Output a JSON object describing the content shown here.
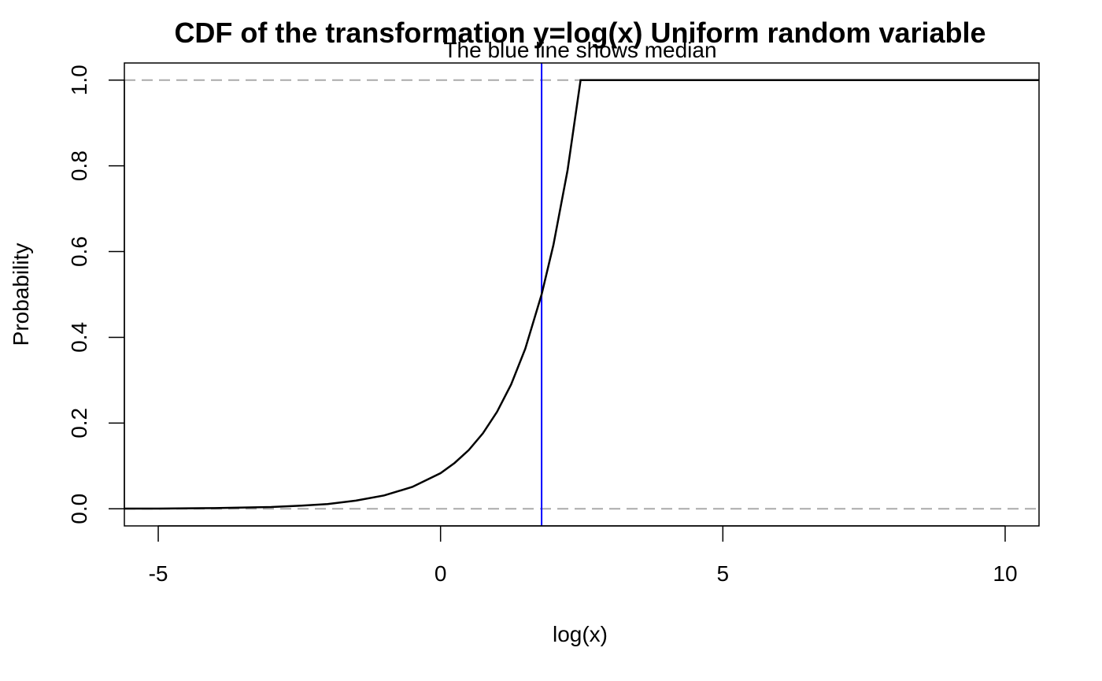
{
  "chart_data": {
    "type": "line",
    "title": "CDF of the transformation y=log(x) Uniform random variable",
    "subtitle": "The blue line shows median",
    "xlabel": "log(x)",
    "ylabel": "Probability",
    "xlim": [
      -5.6,
      10.6
    ],
    "ylim": [
      -0.04,
      1.04
    ],
    "xticks": [
      -5,
      0,
      5,
      10
    ],
    "xtick_labels": [
      "-5",
      "0",
      "5",
      "10"
    ],
    "yticks": [
      0.0,
      0.2,
      0.4,
      0.6,
      0.8,
      1.0
    ],
    "ytick_labels": [
      "0.0",
      "0.2",
      "0.4",
      "0.6",
      "0.8",
      "1.0"
    ],
    "grid": false,
    "legend": "none",
    "series": [
      {
        "color": "#000000",
        "points": [
          [
            -5.6,
            0.0003
          ],
          [
            -5.0,
            0.0005
          ],
          [
            -4.0,
            0.0015
          ],
          [
            -3.0,
            0.004
          ],
          [
            -2.5,
            0.007
          ],
          [
            -2.0,
            0.011
          ],
          [
            -1.5,
            0.019
          ],
          [
            -1.0,
            0.031
          ],
          [
            -0.5,
            0.051
          ],
          [
            0.0,
            0.083
          ],
          [
            0.25,
            0.107
          ],
          [
            0.5,
            0.137
          ],
          [
            0.75,
            0.176
          ],
          [
            1.0,
            0.226
          ],
          [
            1.25,
            0.29
          ],
          [
            1.5,
            0.373
          ],
          [
            1.79,
            0.5
          ],
          [
            2.0,
            0.616
          ],
          [
            2.25,
            0.79
          ],
          [
            2.48,
            1.0
          ],
          [
            10.6,
            1.0
          ]
        ]
      }
    ],
    "reference_lines": [
      {
        "orientation": "horizontal",
        "value": 0.0,
        "style": "dashed",
        "color": "#aaaaaa"
      },
      {
        "orientation": "horizontal",
        "value": 1.0,
        "style": "dashed",
        "color": "#aaaaaa"
      },
      {
        "orientation": "vertical",
        "value": 1.79,
        "style": "solid",
        "color": "#0000ff"
      }
    ]
  }
}
